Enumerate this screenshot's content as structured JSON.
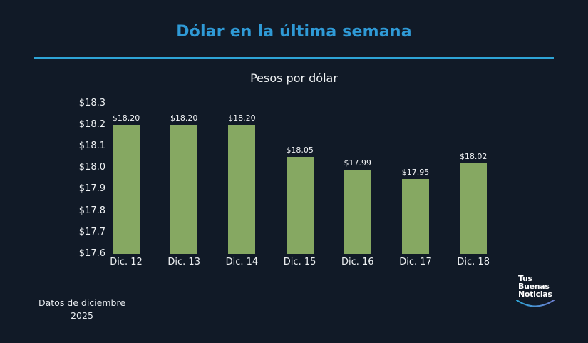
{
  "header": {
    "title": "Dólar en la última semana",
    "subtitle": "Pesos por dólar"
  },
  "colors": {
    "background": "#111a27",
    "title": "#2f9ad6",
    "rule": "#2ea4d6",
    "bar": "#86a862"
  },
  "chart_data": {
    "type": "bar",
    "title": "Dólar en la última semana",
    "subtitle": "Pesos por dólar",
    "categories": [
      "Dic. 12",
      "Dic. 13",
      "Dic. 14",
      "Dic. 15",
      "Dic. 16",
      "Dic. 17",
      "Dic. 18"
    ],
    "values": [
      18.2,
      18.2,
      18.2,
      18.05,
      17.99,
      17.95,
      18.02
    ],
    "value_labels": [
      "$18.20",
      "$18.20",
      "$18.20",
      "$18.05",
      "$17.99",
      "$17.95",
      "$18.02"
    ],
    "xlabel": "",
    "ylabel": "Pesos por dólar",
    "ylim": [
      17.6,
      18.3
    ],
    "yticks": [
      "$18.3",
      "$18.2",
      "$18.1",
      "$18.0",
      "$17.9",
      "$17.8",
      "$17.7",
      "$17.6"
    ],
    "grid": false,
    "legend": null
  },
  "footer": {
    "note_line1": "Datos de diciembre",
    "note_line2": "2025",
    "logo_line1": "Tus",
    "logo_line2": "Buenas",
    "logo_line3": "Noticias"
  }
}
